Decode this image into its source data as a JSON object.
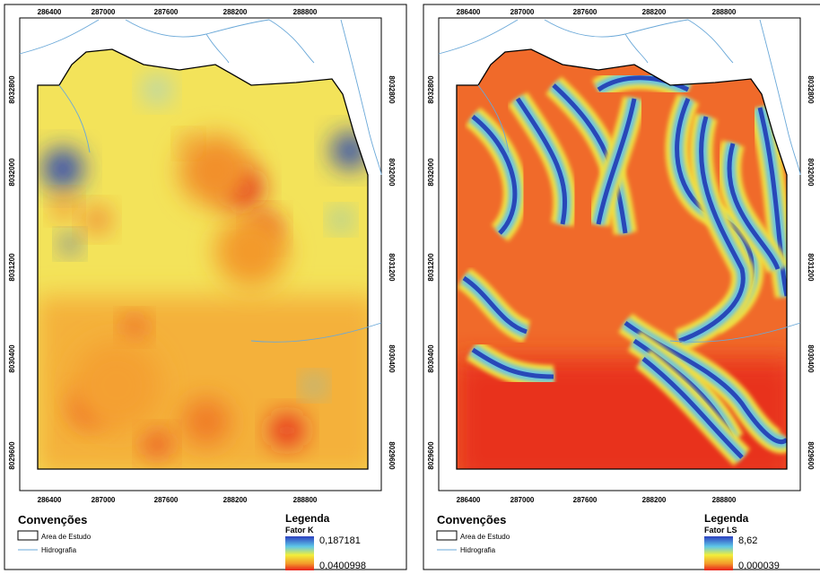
{
  "panels": [
    {
      "x_labels": [
        "286400",
        "287000",
        "287600",
        "288200",
        "288800"
      ],
      "y_labels": [
        "8032800",
        "8032000",
        "8031200",
        "8030400",
        "8029600"
      ],
      "conventions": {
        "title": "Convenções",
        "items": [
          "Area de Estudo",
          "Hidrografia"
        ]
      },
      "legend": {
        "title": "Legenda",
        "subtitle": "Fator K",
        "max": "0,187181",
        "min": "0,0400998"
      }
    },
    {
      "x_labels": [
        "286400",
        "287000",
        "287600",
        "288200",
        "288800"
      ],
      "y_labels": [
        "8032800",
        "8032000",
        "8031200",
        "8030400",
        "8029600"
      ],
      "conventions": {
        "title": "Convenções",
        "items": [
          "Area de Estudo",
          "Hidrografia"
        ]
      },
      "legend": {
        "title": "Legenda",
        "subtitle": "Fator LS",
        "max": "8,62",
        "min": "0,000039"
      }
    }
  ]
}
